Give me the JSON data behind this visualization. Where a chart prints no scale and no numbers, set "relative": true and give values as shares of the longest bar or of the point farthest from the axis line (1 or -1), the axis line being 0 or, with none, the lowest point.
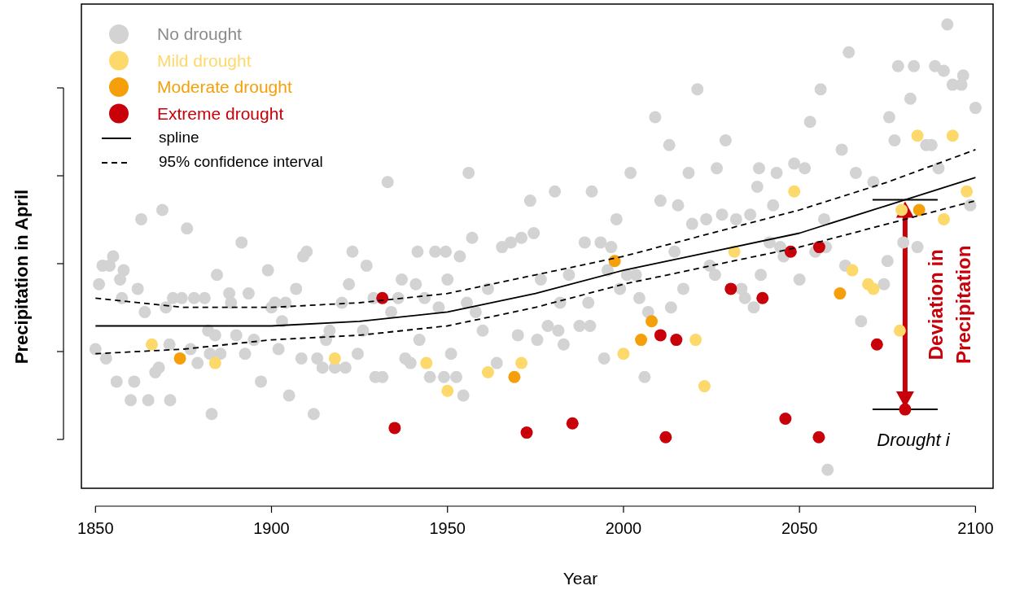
{
  "chart_data": {
    "type": "scatter",
    "xlabel": "Year",
    "ylabel": "Precipitation in April",
    "relative": true,
    "xlim": [
      1846,
      2105
    ],
    "xticks": [
      1850,
      1900,
      1950,
      2000,
      2050,
      2100
    ],
    "legend": "top left",
    "grid": false,
    "marker": "circle",
    "annotations": [
      "Deviation in Precipitation",
      {
        "text": "Drought i",
        "x": 2080,
        "y": 0.17
      }
    ],
    "series": [
      {
        "name": "No drought",
        "color": "#d3d3d3",
        "x": [
          1850,
          1851,
          1852,
          1853,
          1854,
          1855,
          1856,
          1857,
          1858,
          1857.5,
          1860,
          1861,
          1862,
          1863,
          1864,
          1865,
          1867,
          1868,
          1869,
          1870,
          1871,
          1871.2,
          1872,
          1874.5,
          1876,
          1877,
          1878,
          1879,
          1881,
          1882,
          1882.5,
          1883,
          1884,
          1884.5,
          1885.5,
          1888,
          1888.5,
          1890,
          1891.5,
          1892.5,
          1893.5,
          1895,
          1897,
          1899,
          1900,
          1901,
          1902,
          1903,
          1904,
          1905,
          1907,
          1908.5,
          1909,
          1910,
          1912,
          1913,
          1914.5,
          1915.5,
          1916.5,
          1918,
          1920,
          1921,
          1922,
          1923,
          1924.5,
          1926,
          1927,
          1929,
          1929.5,
          1931.5,
          1933,
          1934,
          1936,
          1937,
          1938,
          1939.5,
          1941,
          1941.5,
          1942,
          1943.5,
          1945,
          1946.5,
          1947.5,
          1949,
          1949.5,
          1950,
          1951,
          1952.5,
          1953.5,
          1954.5,
          1955.5,
          1956,
          1957,
          1958,
          1960,
          1961.5,
          1964,
          1965.5,
          1968,
          1970,
          1971,
          1973.5,
          1974.5,
          1975.5,
          1976.5,
          1978.5,
          1980.5,
          1981.5,
          1982,
          1983,
          1984.5,
          1987.5,
          1989,
          1990,
          1990.5,
          1991,
          1993.5,
          1994.5,
          1995.5,
          1996.5,
          1998,
          1999,
          2001,
          2002,
          2003.5,
          2004.5,
          2006,
          2007,
          2009,
          2010.5,
          2013,
          2013.5,
          2014.5,
          2015.5,
          2017,
          2018.5,
          2019.5,
          2021,
          2023.5,
          2024.5,
          2026,
          2026.5,
          2028,
          2029,
          2032,
          2033.5,
          2034.5,
          2036,
          2037,
          2038,
          2038.5,
          2039,
          2041.5,
          2042.5,
          2043.5,
          2044.5,
          2045.5,
          2048.5,
          2050,
          2051.5,
          2053,
          2054.5,
          2056,
          2057,
          2057.5,
          2058,
          2062,
          2063,
          2064,
          2066,
          2067.5,
          2071,
          2074,
          2075,
          2075.5,
          2077,
          2078,
          2079.5,
          2081.5,
          2082.5,
          2083.5,
          2086,
          2087.5,
          2088.5,
          2089.5,
          2091,
          2092,
          2093.5,
          2096,
          2096.5,
          2098.5,
          2100
        ],
        "values": [
          0.3,
          0.44,
          0.48,
          0.28,
          0.48,
          0.5,
          0.23,
          0.45,
          0.47,
          0.41,
          0.19,
          0.23,
          0.43,
          0.58,
          0.38,
          0.19,
          0.25,
          0.26,
          0.6,
          0.39,
          0.31,
          0.19,
          0.41,
          0.41,
          0.56,
          0.3,
          0.41,
          0.27,
          0.41,
          0.34,
          0.29,
          0.16,
          0.33,
          0.46,
          0.29,
          0.42,
          0.4,
          0.33,
          0.53,
          0.29,
          0.42,
          0.32,
          0.23,
          0.47,
          0.39,
          0.4,
          0.3,
          0.36,
          0.4,
          0.2,
          0.43,
          0.28,
          0.5,
          0.51,
          0.16,
          0.28,
          0.26,
          0.32,
          0.34,
          0.26,
          0.4,
          0.26,
          0.44,
          0.51,
          0.29,
          0.34,
          0.48,
          0.41,
          0.24,
          0.24,
          0.66,
          0.38,
          0.41,
          0.45,
          0.28,
          0.27,
          0.44,
          0.51,
          0.32,
          0.41,
          0.24,
          0.51,
          0.39,
          0.24,
          0.51,
          0.45,
          0.29,
          0.24,
          0.5,
          0.2,
          0.4,
          0.68,
          0.54,
          0.38,
          0.34,
          0.43,
          0.27,
          0.52,
          0.53,
          0.33,
          0.54,
          0.62,
          0.55,
          0.32,
          0.45,
          0.35,
          0.64,
          0.34,
          0.4,
          0.31,
          0.46,
          0.35,
          0.53,
          0.4,
          0.35,
          0.64,
          0.53,
          0.28,
          0.47,
          0.52,
          0.58,
          0.43,
          0.46,
          0.68,
          0.46,
          0.41,
          0.24,
          0.38,
          0.8,
          0.62,
          0.74,
          0.39,
          0.51,
          0.61,
          0.43,
          0.68,
          0.57,
          0.86,
          0.58,
          0.48,
          0.46,
          0.69,
          0.59,
          0.75,
          0.58,
          0.43,
          0.41,
          0.59,
          0.39,
          0.65,
          0.69,
          0.46,
          0.53,
          0.61,
          0.68,
          0.52,
          0.5,
          0.7,
          0.45,
          0.69,
          0.79,
          0.51,
          0.86,
          0.58,
          0.52,
          0.04,
          0.73,
          0.48,
          0.94,
          0.68,
          0.36,
          0.66,
          0.44,
          0.49,
          0.8,
          0.75,
          0.91,
          0.53,
          0.84,
          0.91,
          0.52,
          0.74,
          0.74,
          0.91,
          0.69,
          0.9,
          1.0,
          0.87,
          0.87,
          0.89,
          0.61,
          0.82
        ]
      },
      {
        "name": "Mild drought",
        "color": "#fcd96a",
        "x": [
          1866,
          1884,
          1918,
          1944,
          1950,
          1961.5,
          1971,
          2000,
          2020.5,
          2023,
          2031.5,
          2048.5,
          2065,
          2069.5,
          2071,
          2078.5,
          2079,
          2083.5,
          2091,
          2093.5,
          2097.5
        ],
        "values": [
          0.31,
          0.27,
          0.28,
          0.27,
          0.21,
          0.25,
          0.27,
          0.29,
          0.32,
          0.22,
          0.51,
          0.64,
          0.47,
          0.44,
          0.43,
          0.34,
          0.6,
          0.76,
          0.58,
          0.76,
          0.64
        ]
      },
      {
        "name": "Moderate drought",
        "color": "#f5a00a",
        "x": [
          1874,
          1969,
          1997.5,
          2005,
          2008,
          2061.5,
          2084
        ],
        "values": [
          0.28,
          0.24,
          0.49,
          0.32,
          0.36,
          0.42,
          0.6
        ]
      },
      {
        "name": "Extreme drought",
        "color": "#c8000a",
        "x": [
          1931.5,
          1935,
          1972.5,
          1985.5,
          2010.5,
          2012,
          2015,
          2030.5,
          2039.5,
          2046,
          2047.5,
          2055.5,
          2055.6,
          2072,
          2080
        ],
        "values": [
          0.41,
          0.13,
          0.12,
          0.14,
          0.33,
          0.11,
          0.32,
          0.43,
          0.41,
          0.15,
          0.51,
          0.11,
          0.52,
          0.31,
          0.17
        ]
      },
      {
        "name": "spline",
        "type": "line",
        "color": "#000000",
        "line_style": "solid",
        "marker": "none",
        "x": [
          1850,
          1875,
          1900,
          1925,
          1950,
          1975,
          2000,
          2025,
          2050,
          2075,
          2100
        ],
        "values": [
          0.35,
          0.35,
          0.35,
          0.36,
          0.38,
          0.42,
          0.47,
          0.51,
          0.55,
          0.61,
          0.67
        ]
      },
      {
        "name": "95% confidence interval",
        "type": "line",
        "color": "#000000",
        "line_style": "dashed",
        "marker": "none",
        "x": [
          1850,
          1875,
          1900,
          1925,
          1950,
          1975,
          2000,
          2025,
          2050,
          2075,
          2100
        ],
        "values": [
          0.41,
          0.39,
          0.39,
          0.4,
          0.42,
          0.46,
          0.5,
          0.55,
          0.6,
          0.66,
          0.73
        ]
      },
      {
        "type": "line",
        "color": "#000000",
        "line_style": "dashed",
        "marker": "none",
        "x": [
          1850,
          1875,
          1900,
          1925,
          1950,
          1975,
          2000,
          2025,
          2050,
          2075,
          2100
        ],
        "values": [
          0.29,
          0.3,
          0.32,
          0.33,
          0.35,
          0.39,
          0.44,
          0.48,
          0.52,
          0.57,
          0.62
        ]
      }
    ]
  }
}
